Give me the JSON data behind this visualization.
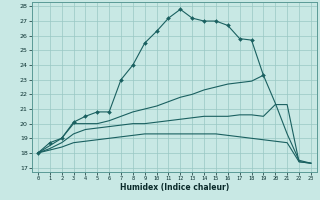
{
  "xlabel": "Humidex (Indice chaleur)",
  "xlim": [
    0,
    23
  ],
  "ylim": [
    17,
    28
  ],
  "yticks": [
    17,
    18,
    19,
    20,
    21,
    22,
    23,
    24,
    25,
    26,
    27,
    28
  ],
  "xticks": [
    0,
    1,
    2,
    3,
    4,
    5,
    6,
    7,
    8,
    9,
    10,
    11,
    12,
    13,
    14,
    15,
    16,
    17,
    18,
    19,
    20,
    21,
    22,
    23
  ],
  "bg_color": "#c8e8e4",
  "grid_color": "#9ac8c4",
  "line_color": "#1a6060",
  "line1_x": [
    0,
    1,
    2,
    3,
    4,
    5,
    6,
    7,
    8,
    9,
    10,
    11,
    12,
    13,
    14,
    15,
    16,
    17,
    18,
    19
  ],
  "line1_y": [
    18.0,
    18.7,
    19.0,
    20.1,
    20.5,
    20.8,
    20.8,
    23.0,
    24.0,
    25.5,
    26.3,
    27.2,
    27.8,
    27.2,
    27.0,
    27.0,
    26.7,
    25.8,
    25.7,
    23.3
  ],
  "line2_x": [
    0,
    1,
    2,
    3,
    4,
    5,
    6,
    7,
    8,
    9,
    10,
    11,
    12,
    13,
    14,
    15,
    16,
    17,
    18,
    19,
    20,
    21,
    22,
    23
  ],
  "line2_y": [
    18.0,
    18.5,
    19.0,
    20.0,
    20.0,
    20.0,
    20.2,
    20.5,
    20.8,
    21.0,
    21.2,
    21.5,
    21.8,
    22.0,
    22.3,
    22.5,
    22.7,
    22.8,
    22.9,
    23.3,
    21.4,
    19.3,
    17.5,
    17.3
  ],
  "line3_x": [
    0,
    1,
    2,
    3,
    4,
    5,
    6,
    7,
    8,
    9,
    10,
    11,
    12,
    13,
    14,
    15,
    16,
    17,
    18,
    19,
    20,
    21,
    22,
    23
  ],
  "line3_y": [
    18.0,
    18.3,
    18.7,
    19.3,
    19.6,
    19.7,
    19.8,
    19.9,
    20.0,
    20.0,
    20.1,
    20.2,
    20.3,
    20.4,
    20.5,
    20.5,
    20.5,
    20.6,
    20.6,
    20.5,
    21.3,
    21.3,
    17.4,
    17.3
  ],
  "line4_x": [
    0,
    1,
    2,
    3,
    4,
    5,
    6,
    7,
    8,
    9,
    10,
    11,
    12,
    13,
    14,
    15,
    16,
    17,
    18,
    19,
    20,
    21,
    22,
    23
  ],
  "line4_y": [
    18.0,
    18.2,
    18.4,
    18.7,
    18.8,
    18.9,
    19.0,
    19.1,
    19.2,
    19.3,
    19.3,
    19.3,
    19.3,
    19.3,
    19.3,
    19.3,
    19.2,
    19.1,
    19.0,
    18.9,
    18.8,
    18.7,
    17.4,
    17.3
  ]
}
